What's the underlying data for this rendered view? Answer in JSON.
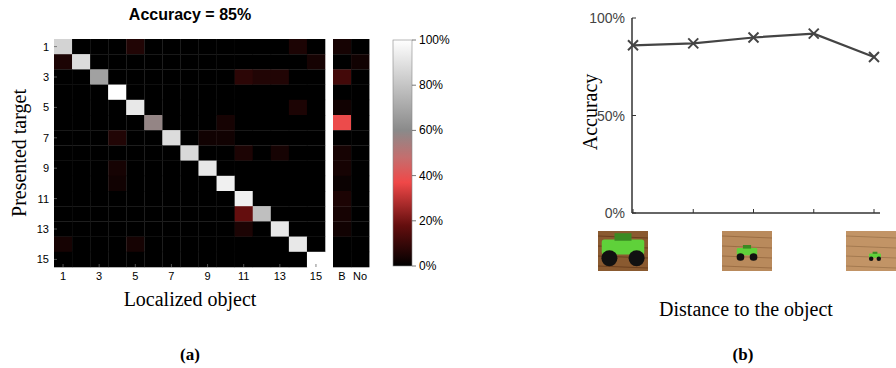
{
  "chart_data": [
    {
      "type": "heatmap",
      "title": "Accuracy = 85%",
      "x_label": "Localized object",
      "y_label": "Presented target",
      "panel_label": "(a)",
      "categories": [
        "1",
        null,
        "3",
        null,
        "5",
        null,
        "7",
        null,
        "9",
        null,
        "11",
        null,
        "13",
        null,
        "15"
      ],
      "y_categories": [
        "1",
        null,
        "3",
        null,
        "5",
        null,
        "7",
        null,
        "9",
        null,
        "11",
        null,
        "13",
        null,
        "15"
      ],
      "side_categories": [
        "B",
        "No"
      ],
      "cells": [
        [
          85,
          0,
          0,
          0,
          6,
          0,
          0,
          0,
          0,
          0,
          0,
          0,
          0,
          5,
          0
        ],
        [
          5,
          88,
          0,
          0,
          0,
          0,
          0,
          0,
          0,
          0,
          0,
          0,
          0,
          0,
          4
        ],
        [
          0,
          0,
          68,
          0,
          0,
          0,
          0,
          0,
          0,
          0,
          8,
          6,
          6,
          0,
          0
        ],
        [
          0,
          0,
          0,
          100,
          0,
          0,
          0,
          0,
          0,
          0,
          0,
          0,
          0,
          0,
          0
        ],
        [
          0,
          0,
          0,
          0,
          92,
          0,
          0,
          0,
          0,
          0,
          0,
          0,
          0,
          5,
          0
        ],
        [
          0,
          0,
          0,
          0,
          0,
          58,
          0,
          0,
          0,
          4,
          0,
          0,
          0,
          0,
          0
        ],
        [
          0,
          0,
          0,
          6,
          0,
          0,
          88,
          0,
          3,
          3,
          0,
          0,
          0,
          0,
          0
        ],
        [
          0,
          0,
          0,
          0,
          0,
          0,
          0,
          87,
          0,
          0,
          5,
          0,
          4,
          0,
          0
        ],
        [
          0,
          0,
          0,
          4,
          0,
          0,
          0,
          0,
          92,
          0,
          0,
          0,
          0,
          0,
          0
        ],
        [
          0,
          0,
          0,
          3,
          0,
          0,
          0,
          0,
          0,
          95,
          0,
          0,
          0,
          0,
          0
        ],
        [
          0,
          0,
          0,
          0,
          0,
          0,
          0,
          0,
          0,
          0,
          95,
          0,
          0,
          0,
          0
        ],
        [
          0,
          0,
          0,
          0,
          0,
          0,
          0,
          0,
          0,
          0,
          18,
          78,
          0,
          0,
          0
        ],
        [
          0,
          0,
          0,
          0,
          0,
          0,
          0,
          0,
          0,
          0,
          5,
          0,
          92,
          0,
          0
        ],
        [
          4,
          0,
          0,
          0,
          4,
          0,
          0,
          0,
          0,
          0,
          0,
          0,
          0,
          92,
          0
        ],
        [
          0,
          0,
          0,
          0,
          0,
          0,
          0,
          0,
          0,
          0,
          0,
          0,
          0,
          0,
          100
        ]
      ],
      "side_cells": [
        [
          4,
          0
        ],
        [
          0,
          3
        ],
        [
          12,
          0
        ],
        [
          0,
          0
        ],
        [
          3,
          0
        ],
        [
          38,
          0
        ],
        [
          0,
          0
        ],
        [
          4,
          0
        ],
        [
          4,
          0
        ],
        [
          2,
          0
        ],
        [
          5,
          0
        ],
        [
          4,
          0
        ],
        [
          3,
          0
        ],
        [
          0,
          0
        ],
        [
          0,
          0
        ]
      ],
      "colorbar": {
        "range": [
          0,
          100
        ],
        "ticks": [
          {
            "value": 0,
            "label": "0%"
          },
          {
            "value": 20,
            "label": "20%"
          },
          {
            "value": 40,
            "label": "40%"
          },
          {
            "value": 60,
            "label": "60%"
          },
          {
            "value": 80,
            "label": "80%"
          },
          {
            "value": 100,
            "label": "100%"
          }
        ]
      }
    },
    {
      "type": "line",
      "x_label": "Distance to the object",
      "y_label": "Accuracy",
      "panel_label": "(b)",
      "x": [
        1,
        2,
        3,
        4,
        5
      ],
      "values": [
        86,
        87,
        90,
        92,
        80
      ],
      "color": "#444444",
      "marker": "x",
      "xlim": [
        1,
        5
      ],
      "xticks": [
        1,
        2,
        3,
        4,
        5
      ],
      "ylim": [
        0,
        100
      ],
      "yticks": [
        {
          "value": 0,
          "label": "0%"
        },
        {
          "value": 50,
          "label": "50%"
        },
        {
          "value": 100,
          "label": "100%"
        }
      ],
      "tick_labels": "y"
    }
  ]
}
